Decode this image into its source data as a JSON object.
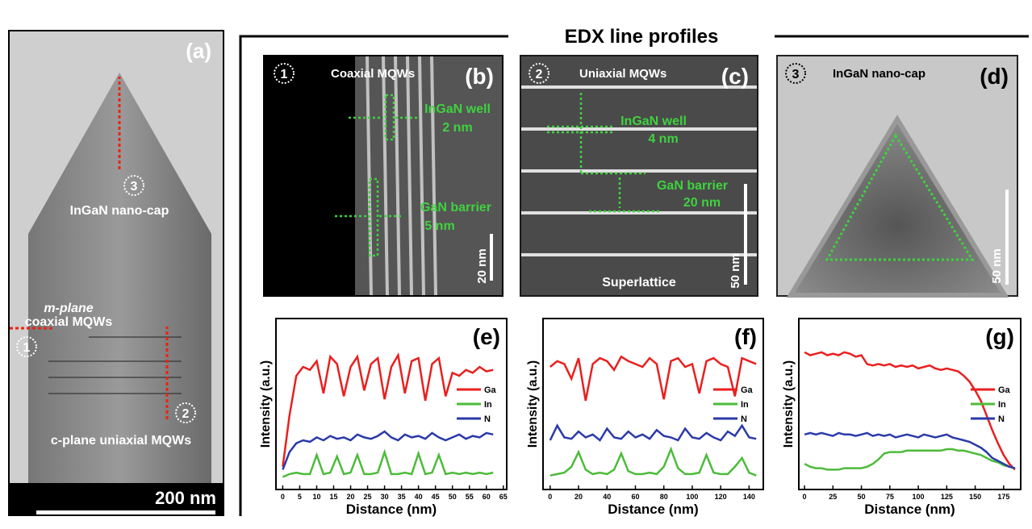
{
  "title": "EDX line profiles",
  "panel_a": {
    "label": "(a)",
    "annotations": [
      "InGaN nano-cap",
      "m-plane",
      "coaxial MQWs",
      "c-plane uniaxial MQWs"
    ],
    "markers": [
      "1",
      "2",
      "3"
    ],
    "scale_bar": "200 nm"
  },
  "panel_b": {
    "label": "(b)",
    "marker": "1",
    "caption": "Coaxial MQWs",
    "annotations": [
      "InGaN well",
      "2 nm",
      "GaN barrier",
      "5 nm"
    ],
    "scale_bar": "20 nm"
  },
  "panel_c": {
    "label": "(c)",
    "marker": "2",
    "caption": "Uniaxial MQWs",
    "annotations": [
      "InGaN well",
      "4 nm",
      "GaN barrier",
      "20 nm",
      "Superlattice"
    ],
    "scale_bar": "50 nm"
  },
  "panel_d": {
    "label": "(d)",
    "marker": "3",
    "caption": "InGaN nano-cap",
    "scale_bar": "50 nm"
  },
  "chart_data": [
    {
      "type": "line",
      "label": "(e)",
      "x_label": "Distance (nm)",
      "y_label": "Intensity (a.u.)",
      "x": [
        0,
        2,
        4,
        6,
        8,
        10,
        12,
        14,
        16,
        18,
        20,
        22,
        24,
        26,
        28,
        30,
        32,
        34,
        36,
        38,
        40,
        42,
        44,
        46,
        48,
        50,
        52,
        54,
        56,
        58,
        60,
        62
      ],
      "series": [
        {
          "name": "Ga",
          "color": "#e8201f",
          "values": [
            10,
            45,
            72,
            78,
            76,
            82,
            60,
            85,
            80,
            58,
            78,
            85,
            62,
            80,
            84,
            56,
            78,
            86,
            60,
            82,
            84,
            55,
            80,
            84,
            58,
            74,
            72,
            76,
            74,
            78,
            75,
            76
          ]
        },
        {
          "name": "In",
          "color": "#4cbb3a",
          "values": [
            3,
            5,
            6,
            5,
            5,
            18,
            5,
            6,
            17,
            5,
            6,
            18,
            5,
            5,
            6,
            20,
            5,
            5,
            6,
            5,
            19,
            5,
            6,
            18,
            5,
            6,
            5,
            6,
            5,
            6,
            5,
            6
          ]
        },
        {
          "name": "N",
          "color": "#2b3aa8",
          "values": [
            8,
            20,
            26,
            28,
            27,
            30,
            28,
            31,
            29,
            30,
            28,
            32,
            30,
            29,
            31,
            34,
            30,
            28,
            32,
            30,
            31,
            29,
            33,
            30,
            28,
            30,
            32,
            29,
            31,
            30,
            33,
            32
          ]
        }
      ],
      "xlim": [
        -2,
        66
      ],
      "xticks": [
        0,
        5,
        10,
        15,
        20,
        25,
        30,
        35,
        40,
        45,
        50,
        55,
        60,
        65
      ],
      "ylim": [
        0,
        100
      ]
    },
    {
      "type": "line",
      "label": "(f)",
      "x_label": "Distance (nm)",
      "y_label": "Intensity (a.u.)",
      "x": [
        0,
        5,
        10,
        15,
        20,
        25,
        30,
        35,
        40,
        45,
        50,
        55,
        60,
        65,
        70,
        75,
        80,
        85,
        90,
        95,
        100,
        105,
        110,
        115,
        120,
        125,
        130,
        135,
        140,
        145
      ],
      "series": [
        {
          "name": "Ga",
          "color": "#e8201f",
          "values": [
            78,
            82,
            80,
            70,
            84,
            55,
            80,
            84,
            82,
            76,
            85,
            82,
            80,
            78,
            84,
            80,
            56,
            82,
            84,
            78,
            80,
            60,
            82,
            84,
            80,
            78,
            58,
            84,
            82,
            80
          ]
        },
        {
          "name": "In",
          "color": "#4cbb3a",
          "values": [
            4,
            5,
            6,
            10,
            20,
            8,
            5,
            6,
            5,
            8,
            19,
            7,
            5,
            5,
            6,
            5,
            10,
            22,
            9,
            5,
            5,
            6,
            18,
            6,
            5,
            5,
            10,
            16,
            6,
            4
          ]
        },
        {
          "name": "N",
          "color": "#2b3aa8",
          "values": [
            28,
            38,
            30,
            29,
            34,
            30,
            32,
            28,
            36,
            30,
            29,
            34,
            30,
            32,
            29,
            35,
            31,
            30,
            28,
            36,
            30,
            29,
            33,
            30,
            28,
            34,
            31,
            38,
            30,
            29
          ]
        }
      ],
      "xlim": [
        -5,
        150
      ],
      "xticks": [
        0,
        20,
        40,
        60,
        80,
        100,
        120,
        140
      ],
      "ylim": [
        0,
        100
      ]
    },
    {
      "type": "line",
      "label": "(g)",
      "x_label": "Distance (nm)",
      "y_label": "Intensity (a.u.)",
      "x": [
        0,
        5,
        10,
        15,
        20,
        25,
        30,
        35,
        40,
        45,
        50,
        55,
        60,
        65,
        70,
        75,
        80,
        85,
        90,
        95,
        100,
        105,
        110,
        115,
        120,
        125,
        130,
        135,
        140,
        145,
        150,
        155,
        160,
        165,
        170,
        175,
        180,
        185
      ],
      "series": [
        {
          "name": "Ga",
          "color": "#e8201f",
          "values": [
            88,
            86,
            87,
            88,
            86,
            87,
            86,
            88,
            87,
            85,
            86,
            80,
            79,
            80,
            79,
            80,
            78,
            79,
            78,
            79,
            77,
            78,
            79,
            77,
            76,
            77,
            76,
            75,
            72,
            68,
            62,
            55,
            45,
            35,
            26,
            18,
            12,
            8
          ]
        },
        {
          "name": "In",
          "color": "#4cbb3a",
          "values": [
            12,
            10,
            9,
            9,
            8,
            8,
            8,
            9,
            9,
            9,
            9,
            10,
            12,
            15,
            19,
            20,
            20,
            20,
            21,
            21,
            21,
            21,
            21,
            21,
            21,
            22,
            22,
            21,
            21,
            20,
            19,
            18,
            16,
            14,
            13,
            11,
            10,
            9
          ]
        },
        {
          "name": "N",
          "color": "#2b3aa8",
          "values": [
            32,
            33,
            32,
            33,
            32,
            31,
            33,
            32,
            32,
            31,
            32,
            33,
            31,
            32,
            31,
            32,
            30,
            31,
            32,
            31,
            30,
            32,
            31,
            30,
            31,
            32,
            30,
            29,
            28,
            27,
            25,
            23,
            20,
            16,
            14,
            12,
            10,
            9
          ]
        }
      ],
      "xlim": [
        -5,
        190
      ],
      "xticks": [
        0,
        25,
        50,
        75,
        100,
        125,
        150,
        175
      ],
      "ylim": [
        0,
        100
      ]
    }
  ]
}
